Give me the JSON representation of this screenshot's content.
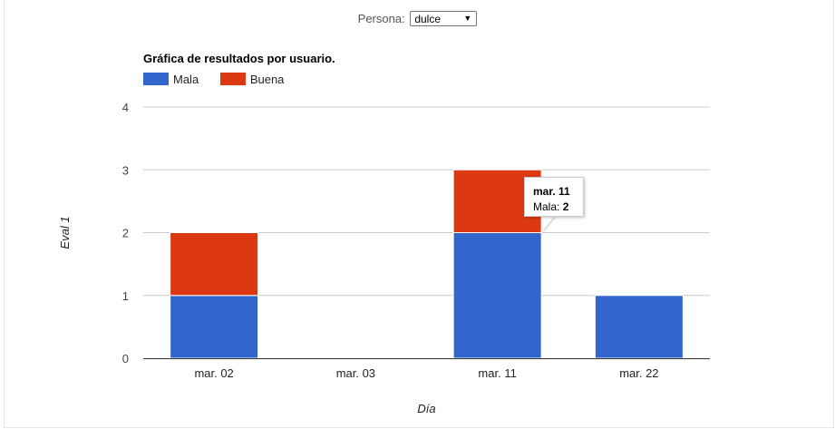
{
  "filter": {
    "label": "Persona:",
    "selected": "dulce"
  },
  "chart_data": {
    "type": "bar",
    "stacked": true,
    "title": "Gráfica de resultados por usuario.",
    "xlabel": "Día",
    "ylabel": "Eval 1",
    "categories": [
      "mar. 02",
      "mar. 03",
      "mar. 11",
      "mar. 22"
    ],
    "series": [
      {
        "name": "Mala",
        "color": "#3366cc",
        "values": [
          1,
          0,
          2,
          1
        ]
      },
      {
        "name": "Buena",
        "color": "#dc3912",
        "values": [
          1,
          0,
          1,
          0
        ]
      }
    ],
    "ylim": [
      0,
      4
    ],
    "yticks": [
      "0",
      "1",
      "2",
      "3",
      "4"
    ],
    "grid": true,
    "legend_position": "top-left"
  },
  "tooltip": {
    "title": "mar. 11",
    "series_label": "Mala:",
    "value": "2"
  }
}
